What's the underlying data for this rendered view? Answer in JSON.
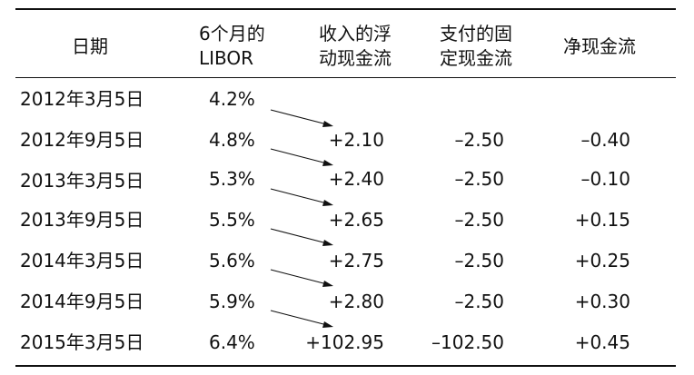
{
  "table": {
    "headers": {
      "date": [
        "日期"
      ],
      "libor": [
        "6个月的",
        "LIBOR"
      ],
      "receive_float": [
        "收入的浮",
        "动现金流"
      ],
      "pay_fixed": [
        "支付的固",
        "定现金流"
      ],
      "net": [
        "净现金流"
      ]
    },
    "rows": [
      {
        "date": "2012年3月5日",
        "libor": "4.2%",
        "receive": "",
        "pay": "",
        "net": ""
      },
      {
        "date": "2012年9月5日",
        "libor": "4.8%",
        "receive": "+2.10",
        "pay": "–2.50",
        "net": "–0.40"
      },
      {
        "date": "2013年3月5日",
        "libor": "5.3%",
        "receive": "+2.40",
        "pay": "–2.50",
        "net": "–0.10"
      },
      {
        "date": "2013年9月5日",
        "libor": "5.5%",
        "receive": "+2.65",
        "pay": "–2.50",
        "net": "+0.15"
      },
      {
        "date": "2014年3月5日",
        "libor": "5.6%",
        "receive": "+2.75",
        "pay": "–2.50",
        "net": "+0.25"
      },
      {
        "date": "2014年9月5日",
        "libor": "5.9%",
        "receive": "+2.80",
        "pay": "–2.50",
        "net": "+0.30"
      },
      {
        "date": "2015年3月5日",
        "libor": "6.4%",
        "receive": "+102.95",
        "pay": "–102.50",
        "net": "+0.45"
      }
    ]
  }
}
